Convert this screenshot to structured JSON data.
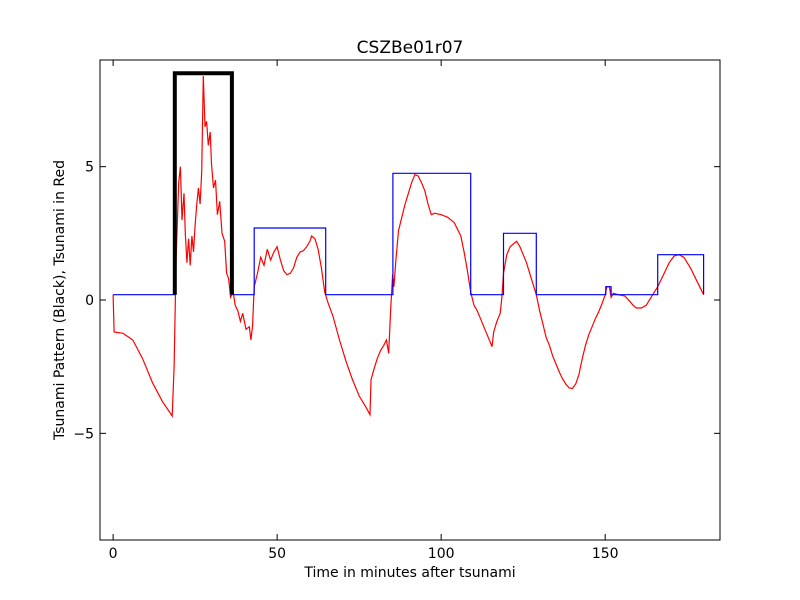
{
  "chart_data": {
    "type": "line",
    "title": "CSZBe01r07",
    "xlabel": "Time in minutes after tsunami",
    "ylabel": "Tsunami Pattern (Black), Tsunami in Red",
    "xlim": [
      -4,
      185
    ],
    "ylim": [
      -9,
      9
    ],
    "x_ticks": [
      0,
      50,
      100,
      150
    ],
    "y_ticks": [
      -5,
      0,
      5
    ],
    "y_tick_labels": [
      "−5",
      "0",
      "5"
    ],
    "grid": false,
    "legend": "none",
    "series": [
      {
        "color": "#ff0000",
        "style": "thin",
        "points": [
          [
            0,
            0.2
          ],
          [
            0.3,
            -1.2
          ],
          [
            3,
            -1.25
          ],
          [
            6,
            -1.5
          ],
          [
            9,
            -2.2
          ],
          [
            12,
            -3.1
          ],
          [
            15,
            -3.8
          ],
          [
            18,
            -4.35
          ],
          [
            18.6,
            -2.5
          ],
          [
            19.2,
            1.5
          ],
          [
            20,
            4.4
          ],
          [
            20.5,
            5.0
          ],
          [
            21,
            3.0
          ],
          [
            21.6,
            4.0
          ],
          [
            22,
            2.5
          ],
          [
            22.5,
            1.4
          ],
          [
            23,
            2.3
          ],
          [
            23.5,
            1.3
          ],
          [
            24,
            2.4
          ],
          [
            24.5,
            1.8
          ],
          [
            25,
            2.8
          ],
          [
            25.5,
            3.6
          ],
          [
            26,
            4.2
          ],
          [
            26.5,
            3.6
          ],
          [
            27,
            4.8
          ],
          [
            27.5,
            8.4
          ],
          [
            28,
            6.5
          ],
          [
            28.5,
            6.7
          ],
          [
            29,
            5.8
          ],
          [
            29.6,
            6.3
          ],
          [
            30,
            5.1
          ],
          [
            30.6,
            4.2
          ],
          [
            31.2,
            4.5
          ],
          [
            31.8,
            3.2
          ],
          [
            32.5,
            3.7
          ],
          [
            33.2,
            2.5
          ],
          [
            34,
            2.2
          ],
          [
            34.6,
            1.0
          ],
          [
            35.2,
            0.8
          ],
          [
            35.8,
            0.1
          ],
          [
            36.6,
            0.3
          ],
          [
            37.2,
            -0.2
          ],
          [
            38,
            -0.4
          ],
          [
            38.8,
            -0.8
          ],
          [
            39.5,
            -0.5
          ],
          [
            40.5,
            -1.1
          ],
          [
            41.5,
            -1.0
          ],
          [
            42,
            -1.5
          ],
          [
            42.5,
            -1.0
          ],
          [
            43,
            0.5
          ],
          [
            44,
            1.0
          ],
          [
            45,
            1.6
          ],
          [
            46,
            1.3
          ],
          [
            47,
            1.9
          ],
          [
            48,
            1.5
          ],
          [
            49,
            1.8
          ],
          [
            50,
            2.0
          ],
          [
            51,
            1.5
          ],
          [
            52,
            1.1
          ],
          [
            53,
            0.95
          ],
          [
            54,
            1.0
          ],
          [
            55,
            1.2
          ],
          [
            56,
            1.6
          ],
          [
            57,
            1.8
          ],
          [
            58,
            1.85
          ],
          [
            59,
            2.0
          ],
          [
            60,
            2.2
          ],
          [
            60.5,
            2.4
          ],
          [
            61.5,
            2.3
          ],
          [
            62.5,
            1.9
          ],
          [
            63.5,
            1.2
          ],
          [
            64.5,
            0.3
          ],
          [
            65.5,
            -0.1
          ],
          [
            67,
            -0.6
          ],
          [
            69,
            -1.5
          ],
          [
            71,
            -2.3
          ],
          [
            73,
            -3.0
          ],
          [
            75,
            -3.6
          ],
          [
            77,
            -4.0
          ],
          [
            78.3,
            -4.3
          ],
          [
            78.6,
            -3.0
          ],
          [
            79.5,
            -2.6
          ],
          [
            80.5,
            -2.2
          ],
          [
            81.5,
            -1.9
          ],
          [
            82.5,
            -1.7
          ],
          [
            83.3,
            -1.5
          ],
          [
            84,
            -2.0
          ],
          [
            84.6,
            -0.4
          ],
          [
            85.2,
            0.95
          ],
          [
            85.6,
            0.5
          ],
          [
            86.2,
            1.5
          ],
          [
            87,
            2.6
          ],
          [
            88,
            3.1
          ],
          [
            89,
            3.6
          ],
          [
            90,
            4.0
          ],
          [
            91,
            4.4
          ],
          [
            92,
            4.7
          ],
          [
            93,
            4.65
          ],
          [
            94,
            4.4
          ],
          [
            95,
            4.1
          ],
          [
            96,
            3.6
          ],
          [
            97,
            3.2
          ],
          [
            98,
            3.25
          ],
          [
            100,
            3.2
          ],
          [
            102,
            3.1
          ],
          [
            104,
            2.9
          ],
          [
            106,
            2.4
          ],
          [
            107,
            1.8
          ],
          [
            108,
            1.1
          ],
          [
            109,
            0.3
          ],
          [
            110,
            -0.2
          ],
          [
            111,
            -0.4
          ],
          [
            112,
            -0.7
          ],
          [
            113,
            -1.0
          ],
          [
            114,
            -1.3
          ],
          [
            115,
            -1.6
          ],
          [
            115.5,
            -1.75
          ],
          [
            116,
            -1.2
          ],
          [
            117,
            -0.8
          ],
          [
            118,
            -0.5
          ],
          [
            118.5,
            0.1
          ],
          [
            119,
            1.0
          ],
          [
            120,
            1.7
          ],
          [
            121,
            2.0
          ],
          [
            122,
            2.1
          ],
          [
            123,
            2.2
          ],
          [
            124,
            2.0
          ],
          [
            125,
            1.7
          ],
          [
            126,
            1.4
          ],
          [
            127,
            1.0
          ],
          [
            128,
            0.6
          ],
          [
            129,
            0.2
          ],
          [
            130,
            -0.4
          ],
          [
            131,
            -0.9
          ],
          [
            132,
            -1.4
          ],
          [
            133,
            -1.7
          ],
          [
            134,
            -2.1
          ],
          [
            135,
            -2.4
          ],
          [
            136,
            -2.7
          ],
          [
            137,
            -2.95
          ],
          [
            138,
            -3.15
          ],
          [
            139,
            -3.3
          ],
          [
            140,
            -3.32
          ],
          [
            141,
            -3.15
          ],
          [
            142,
            -2.8
          ],
          [
            143,
            -2.2
          ],
          [
            144,
            -1.7
          ],
          [
            145,
            -1.3
          ],
          [
            146,
            -1.0
          ],
          [
            147,
            -0.7
          ],
          [
            148,
            -0.45
          ],
          [
            149,
            -0.15
          ],
          [
            150,
            0.2
          ],
          [
            150.5,
            0.5
          ],
          [
            151.3,
            0.5
          ],
          [
            151.8,
            0.1
          ],
          [
            152.5,
            0.25
          ],
          [
            154,
            0.2
          ],
          [
            156,
            0.15
          ],
          [
            157.5,
            -0.05
          ],
          [
            158.5,
            -0.2
          ],
          [
            159.5,
            -0.3
          ],
          [
            161,
            -0.3
          ],
          [
            162.5,
            -0.2
          ],
          [
            164,
            0.1
          ],
          [
            166,
            0.5
          ],
          [
            168,
            1.0
          ],
          [
            169.5,
            1.4
          ],
          [
            171,
            1.65
          ],
          [
            172.5,
            1.7
          ],
          [
            174,
            1.6
          ],
          [
            176,
            1.2
          ],
          [
            178,
            0.7
          ],
          [
            180,
            0.2
          ]
        ]
      },
      {
        "color": "#0000ff",
        "style": "thin",
        "points": [
          [
            0,
            0.2
          ],
          [
            18.8,
            0.2
          ],
          [
            18.8,
            8.5
          ],
          [
            36.2,
            8.5
          ],
          [
            36.2,
            0.3
          ],
          [
            36.5,
            0.2
          ],
          [
            43,
            0.2
          ],
          [
            43,
            2.7
          ],
          [
            64.8,
            2.7
          ],
          [
            64.8,
            0.2
          ],
          [
            85.3,
            0.2
          ],
          [
            85.3,
            4.75
          ],
          [
            109,
            4.75
          ],
          [
            109,
            0.2
          ],
          [
            119,
            0.2
          ],
          [
            119,
            2.5
          ],
          [
            129,
            2.5
          ],
          [
            129,
            0.2
          ],
          [
            150.2,
            0.2
          ],
          [
            150.2,
            0.5
          ],
          [
            151.8,
            0.5
          ],
          [
            151.8,
            0.2
          ],
          [
            166,
            0.2
          ],
          [
            166,
            1.7
          ],
          [
            180,
            1.7
          ],
          [
            180,
            0.2
          ]
        ]
      },
      {
        "color": "#000000",
        "style": "thick",
        "points": [
          [
            18.8,
            0.2
          ],
          [
            18.8,
            8.5
          ],
          [
            36.2,
            8.5
          ],
          [
            36.2,
            0.2
          ]
        ]
      }
    ]
  }
}
